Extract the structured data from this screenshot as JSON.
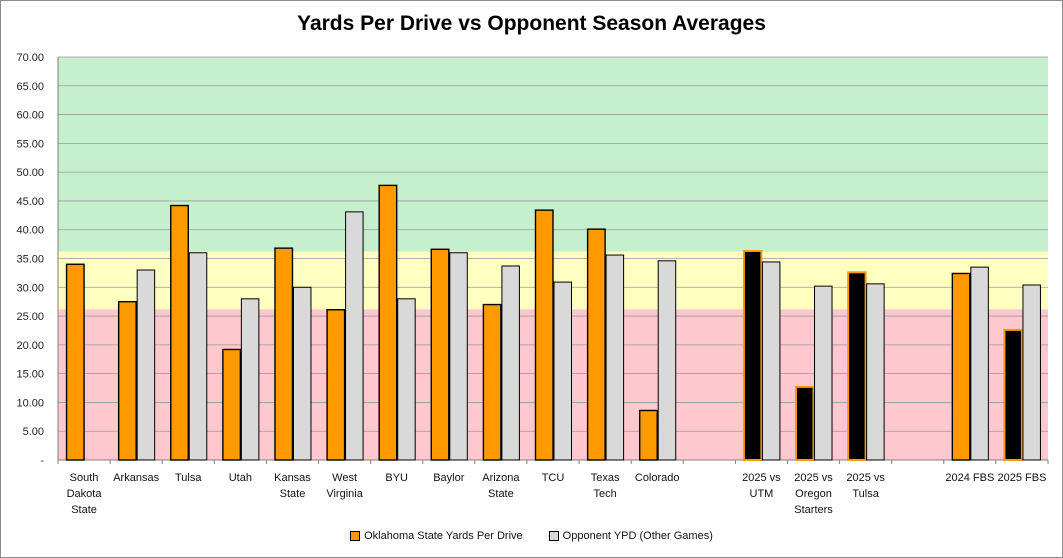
{
  "chart_data": {
    "type": "bar",
    "title": "Yards Per Drive vs Opponent Season Averages",
    "xlabel": "",
    "ylabel": "",
    "ylim": [
      0,
      70
    ],
    "ytick_step": 5,
    "ytick_labels": [
      "-",
      "5.00",
      "10.00",
      "15.00",
      "20.00",
      "25.00",
      "30.00",
      "35.00",
      "40.00",
      "45.00",
      "50.00",
      "55.00",
      "60.00",
      "65.00",
      "70.00"
    ],
    "bands": [
      {
        "from": 0,
        "to": 26.2,
        "color": "#ffc7ce"
      },
      {
        "from": 26.2,
        "to": 36.2,
        "color": "#ffffc0"
      },
      {
        "from": 36.2,
        "to": 70,
        "color": "#c6efce"
      }
    ],
    "categories": [
      [
        "South",
        "Dakota",
        "State"
      ],
      [
        "Arkansas"
      ],
      [
        "Tulsa"
      ],
      [
        "Utah"
      ],
      [
        "Kansas",
        "State"
      ],
      [
        "West",
        "Virginia"
      ],
      [
        "BYU"
      ],
      [
        "Baylor"
      ],
      [
        "Arizona",
        "State"
      ],
      [
        "TCU"
      ],
      [
        "Texas",
        "Tech"
      ],
      [
        "Colorado"
      ],
      [],
      [
        "2025 vs",
        "UTM"
      ],
      [
        "2025 vs",
        "Oregon",
        "Starters"
      ],
      [
        "2025 vs",
        "Tulsa"
      ],
      [],
      [
        "2024 FBS"
      ],
      [
        "2025 FBS"
      ]
    ],
    "series": [
      {
        "name": "Oklahoma State Yards Per Drive",
        "color": "#ff9900",
        "values": [
          34.0,
          27.5,
          44.2,
          19.2,
          36.8,
          26.1,
          47.7,
          36.6,
          27.0,
          43.4,
          40.1,
          8.6,
          null,
          36.3,
          12.7,
          32.6,
          null,
          32.4,
          22.6
        ],
        "highlight_color": "#000000",
        "highlight_indices": [
          13,
          14,
          15,
          18
        ]
      },
      {
        "name": "Opponent YPD (Other Games)",
        "color": "#d9d9d9",
        "values": [
          null,
          33.0,
          36.0,
          28.0,
          30.0,
          43.1,
          28.0,
          36.0,
          33.7,
          30.9,
          35.6,
          34.6,
          null,
          34.4,
          30.2,
          30.6,
          null,
          33.5,
          30.4
        ]
      }
    ],
    "legend_position": "bottom"
  }
}
